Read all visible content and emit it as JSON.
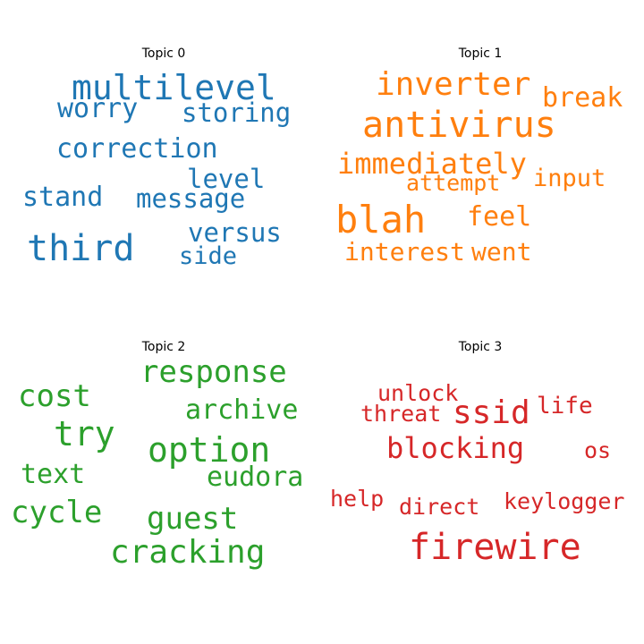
{
  "topics": [
    {
      "title": "Topic 0",
      "color": "#1f77b4",
      "words": [
        "multilevel",
        "worry",
        "storing",
        "correction",
        "level",
        "stand",
        "message",
        "third",
        "versus",
        "side"
      ]
    },
    {
      "title": "Topic 1",
      "color": "#ff7f0e",
      "words": [
        "inverter",
        "break",
        "antivirus",
        "immediately",
        "input",
        "attempt",
        "blah",
        "feel",
        "interest",
        "went"
      ]
    },
    {
      "title": "Topic 2",
      "color": "#2ca02c",
      "words": [
        "response",
        "cost",
        "archive",
        "try",
        "option",
        "text",
        "eudora",
        "cycle",
        "guest",
        "cracking"
      ]
    },
    {
      "title": "Topic 3",
      "color": "#d62728",
      "words": [
        "unlock",
        "threat",
        "ssid",
        "life",
        "blocking",
        "os",
        "help",
        "direct",
        "keylogger",
        "firewire"
      ]
    }
  ]
}
